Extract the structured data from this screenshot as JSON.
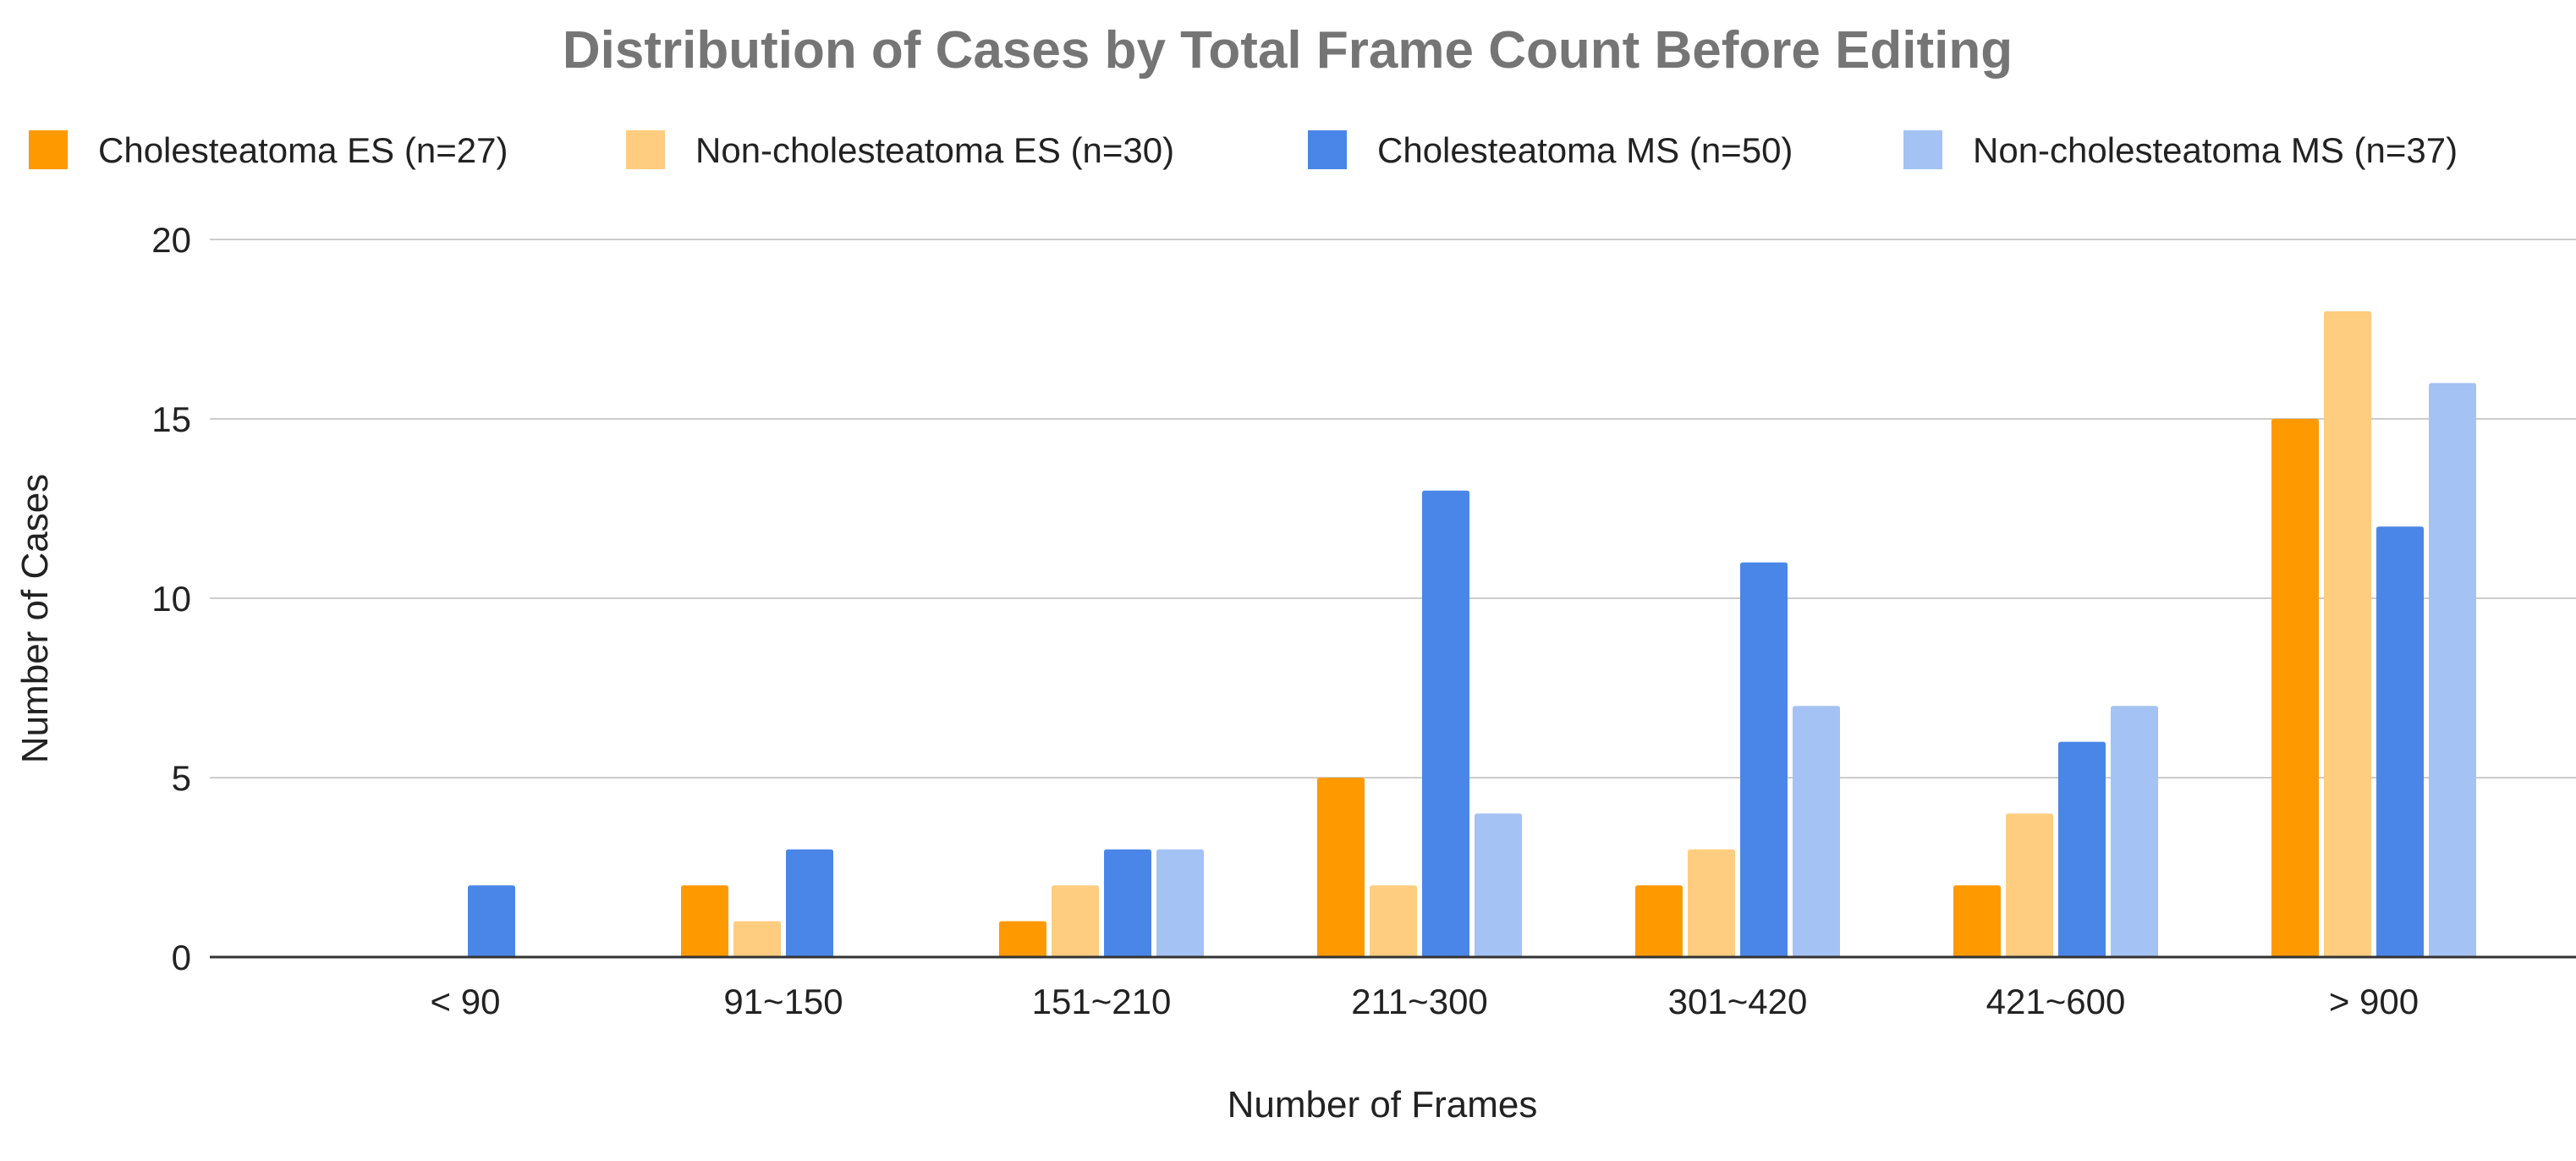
{
  "chart_data": {
    "type": "bar",
    "title": "Distribution of Cases by Total Frame Count Before Editing",
    "xlabel": "Number of Frames",
    "ylabel": "Number of Cases",
    "categories": [
      "< 90",
      "91~150",
      "151~210",
      "211~300",
      "301~420",
      "421~600",
      "> 900"
    ],
    "series": [
      {
        "name": "Cholesteatoma ES (n=27)",
        "color": "#ff9900",
        "values": [
          0,
          2,
          1,
          5,
          2,
          2,
          15
        ]
      },
      {
        "name": "Non-cholesteatoma ES (n=30)",
        "color": "#ffcd80",
        "values": [
          0,
          1,
          2,
          2,
          3,
          4,
          18
        ]
      },
      {
        "name": "Cholesteatoma MS (n=50)",
        "color": "#4a86e8",
        "values": [
          2,
          3,
          3,
          13,
          11,
          6,
          12
        ]
      },
      {
        "name": "Non-cholesteatoma MS (n=37)",
        "color": "#a4c2f4",
        "values": [
          0,
          0,
          3,
          4,
          7,
          7,
          16
        ]
      }
    ],
    "ylim": [
      0,
      20
    ],
    "yticks": [
      0,
      5,
      10,
      15,
      20
    ],
    "grid": true,
    "legend_position": "top"
  }
}
